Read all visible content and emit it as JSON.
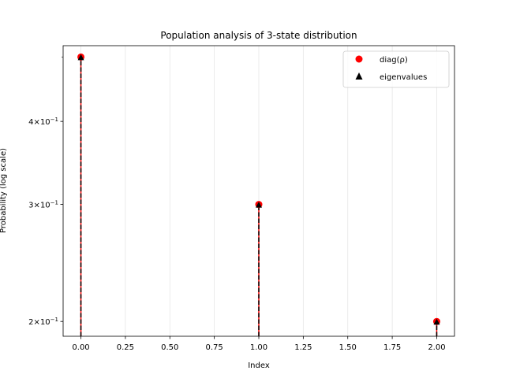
{
  "chart_data": {
    "type": "stem",
    "title": "Population analysis of 3-state distribution",
    "xlabel": "Index",
    "ylabel": "Probability (log scale)",
    "yscale": "log",
    "xlim": [
      -0.1,
      2.1
    ],
    "ylim": [
      0.19,
      0.52
    ],
    "grid": "x-only",
    "legend_position": "top-right",
    "x_ticks": [
      0.0,
      0.25,
      0.5,
      0.75,
      1.0,
      1.25,
      1.5,
      1.75,
      2.0
    ],
    "x_tick_labels": [
      "0.00",
      "0.25",
      "0.50",
      "0.75",
      "1.00",
      "1.25",
      "1.50",
      "1.75",
      "2.00"
    ],
    "y_ticks": [
      {
        "value": 0.2,
        "mantissa": "2",
        "base": "10",
        "exp": "−1"
      },
      {
        "value": 0.3,
        "mantissa": "3",
        "base": "10",
        "exp": "−1"
      },
      {
        "value": 0.4,
        "mantissa": "4",
        "base": "10",
        "exp": "−1"
      }
    ],
    "y_minor_ticks": [
      0.5
    ],
    "series": [
      {
        "name": "diag(ρ)",
        "marker": "circle",
        "color": "#ff0000",
        "x": [
          0,
          1,
          2
        ],
        "y": [
          0.5,
          0.3,
          0.2
        ]
      },
      {
        "name": "eigenvalues",
        "marker": "triangle",
        "color": "#000000",
        "x": [
          0,
          1,
          2
        ],
        "y": [
          0.5,
          0.3,
          0.2
        ]
      }
    ]
  }
}
